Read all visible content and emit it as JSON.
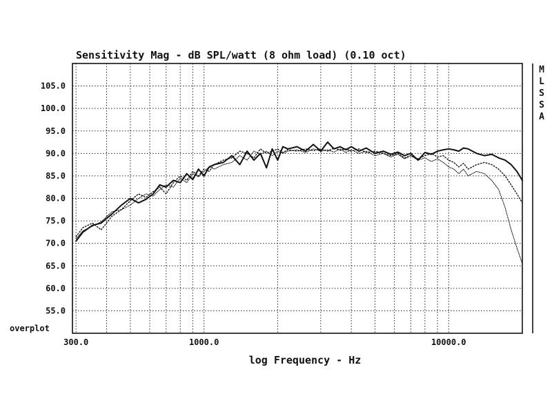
{
  "chart_data": {
    "type": "line",
    "title": "Sensitivity Mag - dB SPL/watt (8 ohm load) (0.10 oct)",
    "xlabel": "log Frequency - Hz",
    "ylabel": "",
    "x_scale": "log",
    "xlim": [
      290,
      20000
    ],
    "ylim": [
      50,
      110
    ],
    "yticks": [
      105.0,
      100.0,
      95.0,
      90.0,
      85.0,
      80.0,
      75.0,
      70.0,
      65.0,
      60.0,
      55.0
    ],
    "ytick_labels": [
      "105.0",
      "100.0",
      "95.0",
      "90.0",
      "85.0",
      "80.0",
      "75.0",
      "70.0",
      "65.0",
      "60.0",
      "55.0"
    ],
    "xticks": [
      300,
      1000,
      10000
    ],
    "xtick_labels": [
      "300.0",
      "1000.0",
      "10000.0"
    ],
    "corner_label": "overplot",
    "side_label": [
      "M",
      "L",
      "S",
      "S",
      "A"
    ],
    "grid": true,
    "series": [
      {
        "style": "solid",
        "x": [
          300,
          320,
          350,
          380,
          420,
          460,
          500,
          540,
          580,
          620,
          660,
          700,
          750,
          800,
          850,
          900,
          950,
          1000,
          1050,
          1100,
          1200,
          1300,
          1400,
          1500,
          1600,
          1700,
          1800,
          1900,
          2000,
          2100,
          2200,
          2400,
          2600,
          2800,
          3000,
          3200,
          3400,
          3600,
          3800,
          4000,
          4300,
          4600,
          5000,
          5400,
          5800,
          6200,
          6600,
          7000,
          7500,
          8000,
          8500,
          9000,
          9500,
          10000,
          10500,
          11000,
          11500,
          12000,
          13000,
          14000,
          15000,
          16000,
          17000,
          18000,
          19000,
          20000
        ],
        "y": [
          70.5,
          72.5,
          74,
          74.5,
          76.5,
          78.5,
          80,
          79,
          79.8,
          81,
          83,
          82.5,
          84,
          83.5,
          85.5,
          84.2,
          86.5,
          85,
          87,
          87.5,
          88,
          89.5,
          87.5,
          90.5,
          88.5,
          90,
          86.8,
          91,
          88.5,
          91.5,
          91,
          91.5,
          90.5,
          92,
          90.5,
          92.5,
          91,
          91.5,
          90.8,
          91.5,
          90.5,
          91.2,
          90,
          90.5,
          89.8,
          90.3,
          89.5,
          90,
          88.5,
          90.2,
          89.8,
          90.5,
          90.8,
          91,
          90.8,
          90.5,
          91.2,
          91,
          90,
          89.5,
          89.8,
          89,
          88.5,
          87.5,
          86,
          84
        ]
      },
      {
        "style": "dotted",
        "x": [
          300,
          320,
          350,
          380,
          420,
          460,
          500,
          540,
          580,
          620,
          660,
          700,
          750,
          800,
          850,
          900,
          950,
          1000,
          1050,
          1100,
          1200,
          1300,
          1400,
          1500,
          1600,
          1700,
          1800,
          1900,
          2000,
          2100,
          2200,
          2400,
          2600,
          2800,
          3000,
          3200,
          3400,
          3600,
          3800,
          4000,
          4300,
          4600,
          5000,
          5400,
          5800,
          6200,
          6600,
          7000,
          7500,
          8000,
          8500,
          9000,
          9500,
          10000,
          10500,
          11000,
          11500,
          12000,
          13000,
          14000,
          15000,
          16000,
          17000,
          18000,
          19000,
          20000
        ],
        "y": [
          71.5,
          73.5,
          74.5,
          73,
          76,
          77.5,
          79.5,
          81,
          80.2,
          81.5,
          82.5,
          81,
          83.5,
          85,
          84,
          86,
          85,
          86.5,
          86,
          87.5,
          88.5,
          89,
          90.5,
          90,
          89,
          91,
          90,
          90.5,
          91,
          90.2,
          90.8,
          90.5,
          91,
          90.6,
          91,
          90.5,
          91.2,
          90.7,
          91,
          90.5,
          91,
          90.2,
          90.5,
          90,
          89.5,
          90,
          89,
          89.5,
          88.8,
          89.5,
          90,
          89.2,
          89.5,
          88.5,
          88,
          87,
          87.8,
          86.5,
          87.5,
          88,
          87.5,
          86.5,
          85,
          83,
          81,
          79
        ]
      },
      {
        "style": "fine-dotted",
        "x": [
          300,
          320,
          350,
          380,
          420,
          460,
          500,
          540,
          580,
          620,
          660,
          700,
          750,
          800,
          850,
          900,
          950,
          1000,
          1050,
          1100,
          1200,
          1300,
          1400,
          1500,
          1600,
          1700,
          1800,
          1900,
          2000,
          2100,
          2200,
          2400,
          2600,
          2800,
          3000,
          3200,
          3400,
          3600,
          3800,
          4000,
          4300,
          4600,
          5000,
          5400,
          5800,
          6200,
          6600,
          7000,
          7500,
          8000,
          8500,
          9000,
          9500,
          10000,
          10500,
          11000,
          11500,
          12000,
          13000,
          14000,
          15000,
          16000,
          17000,
          18000,
          19000,
          20000
        ],
        "y": [
          71,
          72.8,
          73.8,
          74.8,
          77,
          77.5,
          78.5,
          80,
          81,
          80.5,
          82,
          83,
          82.5,
          84.5,
          83.5,
          85.5,
          84.8,
          86,
          87,
          86.5,
          87.5,
          88,
          89.5,
          88.5,
          90.5,
          89.8,
          90.5,
          89.5,
          90.5,
          90,
          90.5,
          90.8,
          90.2,
          91,
          90.5,
          90.8,
          90.3,
          91,
          90.2,
          90.8,
          90,
          90.5,
          89.5,
          90,
          89.2,
          89.8,
          88.8,
          89.5,
          88.5,
          89,
          88.2,
          88.8,
          88,
          87,
          86.5,
          85.5,
          86.5,
          85,
          86,
          85.5,
          84,
          82,
          78,
          73,
          69,
          65.5
        ]
      }
    ]
  }
}
